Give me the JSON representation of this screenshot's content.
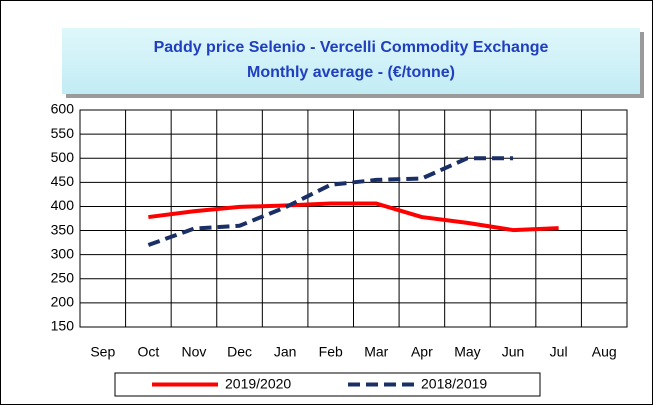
{
  "chart_data": {
    "type": "line",
    "title": "Paddy price Selenio - Vercelli Commodity Exchange",
    "subtitle": "Monthly average - (€/tonne)",
    "categories": [
      "Sep",
      "Oct",
      "Nov",
      "Dec",
      "Jan",
      "Feb",
      "Mar",
      "Apr",
      "May",
      "Jun",
      "Jul",
      "Aug"
    ],
    "series": [
      {
        "name": "2019/2020",
        "color": "#ff0000",
        "dash": false,
        "values": [
          null,
          378,
          390,
          399,
          402,
          406,
          406,
          378,
          366,
          351,
          355,
          null
        ]
      },
      {
        "name": "2018/2019",
        "color": "#1a2f66",
        "dash": true,
        "values": [
          null,
          320,
          354,
          360,
          398,
          445,
          455,
          458,
          500,
          500,
          null,
          null
        ]
      }
    ],
    "ylim": [
      150,
      600
    ],
    "yticks": [
      150,
      200,
      250,
      300,
      350,
      400,
      450,
      500,
      550,
      600
    ],
    "grid": true,
    "legend": "bottom"
  }
}
